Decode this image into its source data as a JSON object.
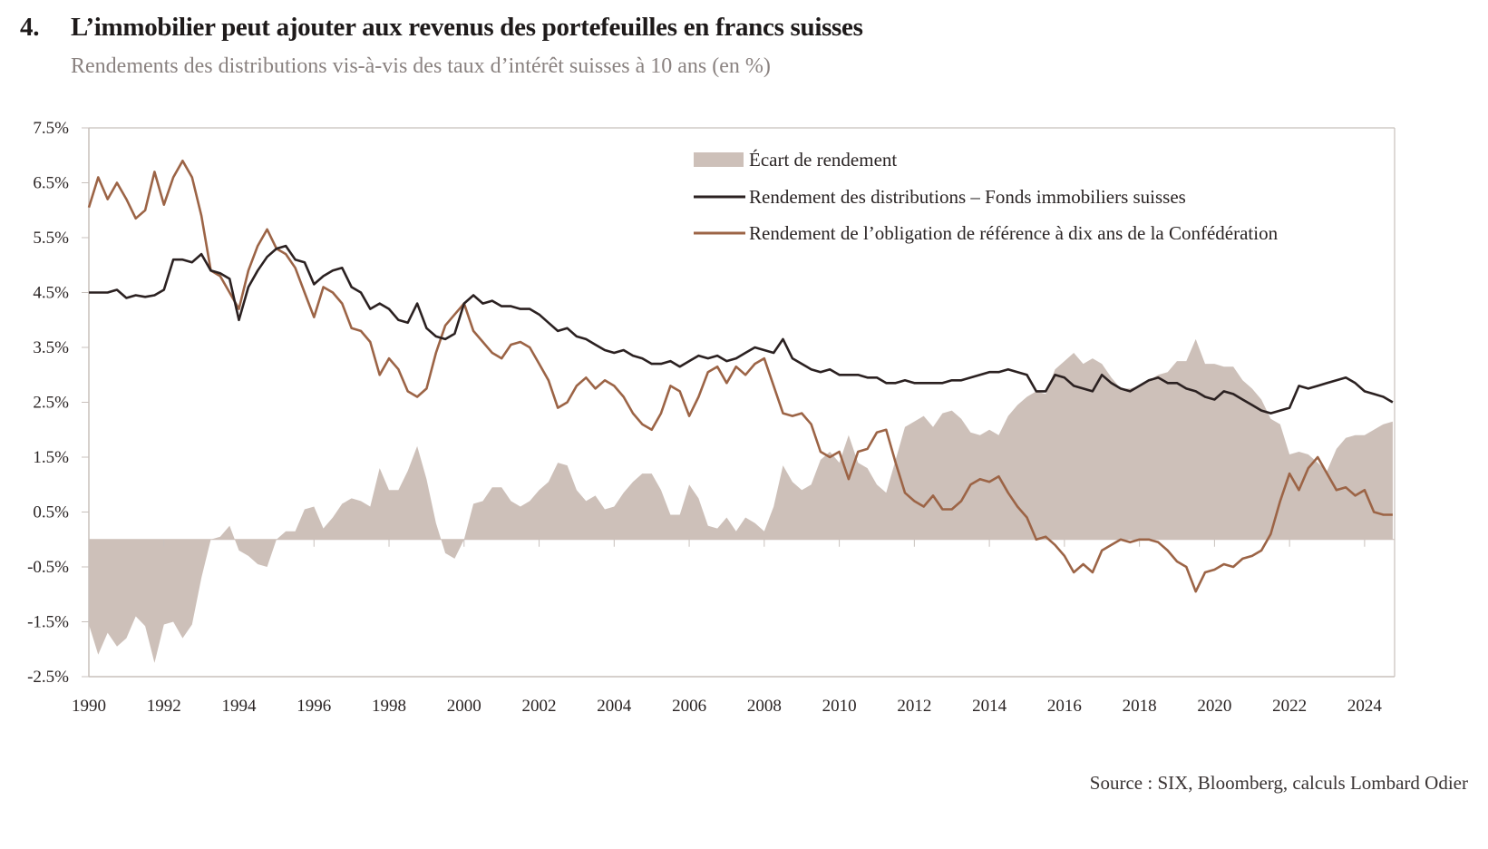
{
  "header": {
    "number": "4.",
    "title": "L’immobilier peut ajouter aux revenus des portefeuilles en francs suisses",
    "subtitle": "Rendements des distributions vis-à-vis des taux d’intérêt suisses à 10 ans (en %)"
  },
  "footer": {
    "source": "Source : SIX, Bloomberg, calculs Lombard Odier"
  },
  "colors": {
    "spread": "#cdc0b9",
    "distribution": "#2b2121",
    "bond": "#9c6446",
    "axis": "#c8c0bc"
  },
  "chart_data": {
    "type": "line",
    "title": "L’immobilier peut ajouter aux revenus des portefeuilles en francs suisses",
    "subtitle": "Rendements des distributions vis-à-vis des taux d’intérêt suisses à 10 ans (en %)",
    "xlabel": "",
    "ylabel": "",
    "xlim": [
      1990,
      2024.8
    ],
    "ylim": [
      -2.5,
      7.5
    ],
    "y_ticks": [
      7.5,
      6.5,
      5.5,
      4.5,
      3.5,
      2.5,
      1.5,
      0.5,
      -0.5,
      -1.5,
      -2.5
    ],
    "y_tick_labels": [
      "7.5%",
      "6.5%",
      "5.5%",
      "4.5%",
      "3.5%",
      "2.5%",
      "1.5%",
      "0.5%",
      "-0.5%",
      "-1.5%",
      "-2.5%"
    ],
    "x_ticks": [
      1990,
      1992,
      1994,
      1996,
      1998,
      2000,
      2002,
      2004,
      2006,
      2008,
      2010,
      2012,
      2014,
      2016,
      2018,
      2020,
      2022,
      2024
    ],
    "x_tick_labels": [
      "1990",
      "1992",
      "1994",
      "1996",
      "1998",
      "2000",
      "2002",
      "2004",
      "2006",
      "2008",
      "2010",
      "2012",
      "2014",
      "2016",
      "2018",
      "2020",
      "2022",
      "2024"
    ],
    "grid": false,
    "legend_position": "top-right",
    "x": [
      1990.0,
      1990.25,
      1990.5,
      1990.75,
      1991.0,
      1991.25,
      1991.5,
      1991.75,
      1992.0,
      1992.25,
      1992.5,
      1992.75,
      1993.0,
      1993.25,
      1993.5,
      1993.75,
      1994.0,
      1994.25,
      1994.5,
      1994.75,
      1995.0,
      1995.25,
      1995.5,
      1995.75,
      1996.0,
      1996.25,
      1996.5,
      1996.75,
      1997.0,
      1997.25,
      1997.5,
      1997.75,
      1998.0,
      1998.25,
      1998.5,
      1998.75,
      1999.0,
      1999.25,
      1999.5,
      1999.75,
      2000.0,
      2000.25,
      2000.5,
      2000.75,
      2001.0,
      2001.25,
      2001.5,
      2001.75,
      2002.0,
      2002.25,
      2002.5,
      2002.75,
      2003.0,
      2003.25,
      2003.5,
      2003.75,
      2004.0,
      2004.25,
      2004.5,
      2004.75,
      2005.0,
      2005.25,
      2005.5,
      2005.75,
      2006.0,
      2006.25,
      2006.5,
      2006.75,
      2007.0,
      2007.25,
      2007.5,
      2007.75,
      2008.0,
      2008.25,
      2008.5,
      2008.75,
      2009.0,
      2009.25,
      2009.5,
      2009.75,
      2010.0,
      2010.25,
      2010.5,
      2010.75,
      2011.0,
      2011.25,
      2011.5,
      2011.75,
      2012.0,
      2012.25,
      2012.5,
      2012.75,
      2013.0,
      2013.25,
      2013.5,
      2013.75,
      2014.0,
      2014.25,
      2014.5,
      2014.75,
      2015.0,
      2015.25,
      2015.5,
      2015.75,
      2016.0,
      2016.25,
      2016.5,
      2016.75,
      2017.0,
      2017.25,
      2017.5,
      2017.75,
      2018.0,
      2018.25,
      2018.5,
      2018.75,
      2019.0,
      2019.25,
      2019.5,
      2019.75,
      2020.0,
      2020.25,
      2020.5,
      2020.75,
      2021.0,
      2021.25,
      2021.5,
      2021.75,
      2022.0,
      2022.25,
      2022.5,
      2022.75,
      2023.0,
      2023.25,
      2023.5,
      2023.75,
      2024.0,
      2024.25,
      2024.5,
      2024.75
    ],
    "series": [
      {
        "name": "Rendement des distributions – Fonds immobiliers suisses",
        "type": "line",
        "values": [
          4.5,
          4.5,
          4.5,
          4.55,
          4.4,
          4.45,
          4.42,
          4.45,
          4.55,
          5.1,
          5.1,
          5.05,
          5.2,
          4.9,
          4.85,
          4.75,
          4.0,
          4.6,
          4.9,
          5.15,
          5.3,
          5.35,
          5.1,
          5.05,
          4.65,
          4.8,
          4.9,
          4.95,
          4.6,
          4.5,
          4.2,
          4.3,
          4.2,
          4.0,
          3.95,
          4.3,
          3.85,
          3.7,
          3.65,
          3.75,
          4.3,
          4.45,
          4.3,
          4.35,
          4.25,
          4.25,
          4.2,
          4.2,
          4.1,
          3.95,
          3.8,
          3.85,
          3.7,
          3.65,
          3.55,
          3.45,
          3.4,
          3.45,
          3.35,
          3.3,
          3.2,
          3.2,
          3.25,
          3.15,
          3.25,
          3.35,
          3.3,
          3.35,
          3.25,
          3.3,
          3.4,
          3.5,
          3.45,
          3.4,
          3.65,
          3.3,
          3.2,
          3.1,
          3.05,
          3.1,
          3.0,
          3.0,
          3.0,
          2.95,
          2.95,
          2.85,
          2.85,
          2.9,
          2.85,
          2.85,
          2.85,
          2.85,
          2.9,
          2.9,
          2.95,
          3.0,
          3.05,
          3.05,
          3.1,
          3.05,
          3.0,
          2.7,
          2.7,
          3.0,
          2.95,
          2.8,
          2.75,
          2.7,
          3.0,
          2.85,
          2.75,
          2.7,
          2.8,
          2.9,
          2.95,
          2.85,
          2.85,
          2.75,
          2.7,
          2.6,
          2.55,
          2.7,
          2.65,
          2.55,
          2.45,
          2.35,
          2.3,
          2.35,
          2.4,
          2.8,
          2.75,
          2.8,
          2.85,
          2.9,
          2.95,
          2.85,
          2.7,
          2.65,
          2.6,
          2.5
        ]
      },
      {
        "name": "Rendement de l’obligation de référence à dix ans de la Confédération",
        "type": "line",
        "values": [
          6.05,
          6.6,
          6.2,
          6.5,
          6.2,
          5.85,
          6.0,
          6.7,
          6.1,
          6.6,
          6.9,
          6.6,
          5.9,
          4.9,
          4.8,
          4.5,
          4.2,
          4.9,
          5.35,
          5.65,
          5.3,
          5.2,
          4.95,
          4.5,
          4.05,
          4.6,
          4.5,
          4.3,
          3.85,
          3.8,
          3.6,
          3.0,
          3.3,
          3.1,
          2.7,
          2.6,
          2.75,
          3.4,
          3.9,
          4.1,
          4.3,
          3.8,
          3.6,
          3.4,
          3.3,
          3.55,
          3.6,
          3.5,
          3.2,
          2.9,
          2.4,
          2.5,
          2.8,
          2.95,
          2.75,
          2.9,
          2.8,
          2.6,
          2.3,
          2.1,
          2.0,
          2.3,
          2.8,
          2.7,
          2.25,
          2.6,
          3.05,
          3.15,
          2.85,
          3.15,
          3.0,
          3.2,
          3.3,
          2.8,
          2.3,
          2.25,
          2.3,
          2.1,
          1.6,
          1.5,
          1.6,
          1.1,
          1.6,
          1.65,
          1.95,
          2.0,
          1.4,
          0.85,
          0.7,
          0.6,
          0.8,
          0.55,
          0.55,
          0.7,
          1.0,
          1.1,
          1.05,
          1.15,
          0.85,
          0.6,
          0.4,
          0.0,
          0.05,
          -0.1,
          -0.3,
          -0.6,
          -0.45,
          -0.6,
          -0.2,
          -0.1,
          0.0,
          -0.05,
          0.0,
          0.0,
          -0.05,
          -0.2,
          -0.4,
          -0.5,
          -0.95,
          -0.6,
          -0.55,
          -0.45,
          -0.5,
          -0.35,
          -0.3,
          -0.2,
          0.1,
          0.7,
          1.2,
          0.9,
          1.3,
          1.5,
          1.2,
          0.9,
          0.95,
          0.8,
          0.9,
          0.5,
          0.45,
          0.45
        ]
      },
      {
        "name": "Écart de rendement",
        "type": "area",
        "values": [
          -1.55,
          -2.1,
          -1.7,
          -1.95,
          -1.8,
          -1.4,
          -1.58,
          -2.25,
          -1.55,
          -1.5,
          -1.8,
          -1.55,
          -0.7,
          0.0,
          0.05,
          0.25,
          -0.2,
          -0.3,
          -0.45,
          -0.5,
          0.0,
          0.15,
          0.15,
          0.55,
          0.6,
          0.2,
          0.4,
          0.65,
          0.75,
          0.7,
          0.6,
          1.3,
          0.9,
          0.9,
          1.25,
          1.7,
          1.1,
          0.3,
          -0.25,
          -0.35,
          0.0,
          0.65,
          0.7,
          0.95,
          0.95,
          0.7,
          0.6,
          0.7,
          0.9,
          1.05,
          1.4,
          1.35,
          0.9,
          0.7,
          0.8,
          0.55,
          0.6,
          0.85,
          1.05,
          1.2,
          1.2,
          0.9,
          0.45,
          0.45,
          1.0,
          0.75,
          0.25,
          0.2,
          0.4,
          0.15,
          0.4,
          0.3,
          0.15,
          0.6,
          1.35,
          1.05,
          0.9,
          1.0,
          1.45,
          1.6,
          1.4,
          1.9,
          1.4,
          1.3,
          1.0,
          0.85,
          1.45,
          2.05,
          2.15,
          2.25,
          2.05,
          2.3,
          2.35,
          2.2,
          1.95,
          1.9,
          2.0,
          1.9,
          2.25,
          2.45,
          2.6,
          2.7,
          2.65,
          3.1,
          3.25,
          3.4,
          3.2,
          3.3,
          3.2,
          2.95,
          2.75,
          2.75,
          2.8,
          2.9,
          3.0,
          3.05,
          3.25,
          3.25,
          3.65,
          3.2,
          3.2,
          3.15,
          3.15,
          2.9,
          2.75,
          2.55,
          2.2,
          2.1,
          1.55,
          1.6,
          1.55,
          1.4,
          1.25,
          1.65,
          1.85,
          1.9,
          1.9,
          2.0,
          2.1,
          2.15
        ]
      }
    ]
  },
  "legend": [
    {
      "label": "Écart de rendement",
      "kind": "area"
    },
    {
      "label": "Rendement des distributions – Fonds immobiliers suisses",
      "kind": "line-dark"
    },
    {
      "label": "Rendement de l’obligation de référence à dix ans de la Confédération",
      "kind": "line-brown"
    }
  ]
}
